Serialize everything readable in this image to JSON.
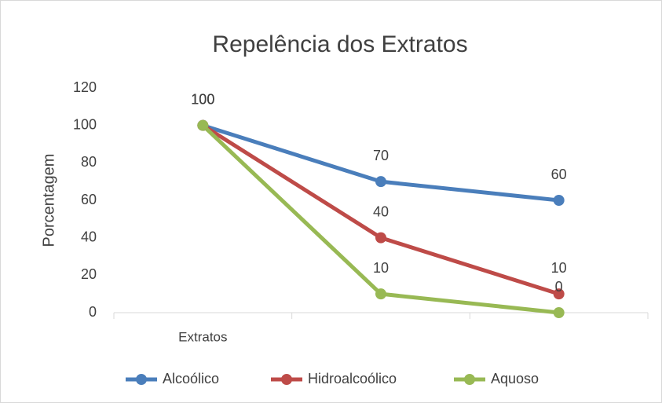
{
  "chart_data": {
    "type": "line",
    "title": "Repelência dos Extratos",
    "y_label": "Porcentagem",
    "categories": [
      "Extratos",
      null,
      null
    ],
    "series": [
      {
        "name": "Alcoólico",
        "color": "#4a7ebb",
        "values": [
          100,
          70,
          60
        ]
      },
      {
        "name": "Hidroalcoólico",
        "color": "#be4b48",
        "values": [
          100,
          40,
          10
        ]
      },
      {
        "name": "Aquoso",
        "color": "#98b954",
        "values": [
          100,
          10,
          0
        ]
      }
    ],
    "ylim": [
      0,
      120
    ],
    "yticks": [
      0,
      20,
      40,
      60,
      80,
      100,
      120
    ],
    "grid": false,
    "legend": "bottom"
  }
}
